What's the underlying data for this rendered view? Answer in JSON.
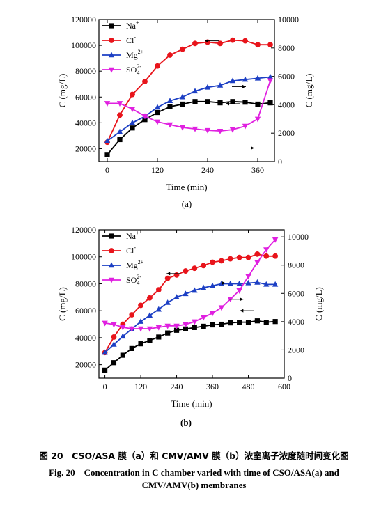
{
  "chart_data": [
    {
      "type": "line",
      "panel_label": "(a)",
      "xlabel": "Time (min)",
      "ylabel_left": "C (mg/L)",
      "ylabel_right": "C (mg/L)",
      "xlim": [
        -20,
        400
      ],
      "xticks": [
        0,
        120,
        240,
        360
      ],
      "ylim_left": [
        10000,
        120000
      ],
      "yticks_left": [
        20000,
        40000,
        60000,
        80000,
        100000,
        120000
      ],
      "ylim_right": [
        0,
        10000
      ],
      "yticks_right": [
        0,
        2000,
        4000,
        6000,
        8000,
        10000
      ],
      "legend_position": "top-left",
      "series": [
        {
          "name": "Na",
          "sup": "+",
          "sub": "",
          "axis": "left",
          "color": "#000000",
          "marker": "square",
          "x": [
            0,
            30,
            60,
            90,
            120,
            150,
            180,
            210,
            240,
            270,
            300,
            330,
            360,
            390
          ],
          "y": [
            15500,
            27000,
            36000,
            42500,
            48000,
            52500,
            54500,
            56500,
            56500,
            55500,
            56500,
            56000,
            54500,
            55500
          ]
        },
        {
          "name": "Cl",
          "sup": "-",
          "sub": "",
          "axis": "left",
          "color": "#e8141b",
          "marker": "circle",
          "x": [
            0,
            30,
            60,
            90,
            120,
            150,
            180,
            210,
            240,
            270,
            300,
            330,
            360,
            390
          ],
          "y": [
            25000,
            46000,
            62000,
            72000,
            84000,
            92500,
            97000,
            101500,
            102500,
            101500,
            104000,
            103500,
            100500,
            100500
          ]
        },
        {
          "name": "Mg",
          "sup": "2+",
          "sub": "",
          "axis": "left",
          "color": "#1c3fc4",
          "marker": "triangle",
          "x": [
            0,
            30,
            60,
            90,
            120,
            150,
            180,
            210,
            240,
            270,
            300,
            330,
            360,
            390
          ],
          "y": [
            26000,
            33000,
            40000,
            45000,
            52000,
            57000,
            60000,
            64500,
            67500,
            69000,
            72500,
            73500,
            74500,
            75500
          ]
        },
        {
          "name": "SO",
          "sup": "2-",
          "sub": "4",
          "axis": "right",
          "color": "#e020e0",
          "marker": "triangle-down",
          "x": [
            0,
            30,
            60,
            90,
            120,
            150,
            180,
            210,
            240,
            270,
            300,
            330,
            360,
            390
          ],
          "y": [
            4100,
            4100,
            3700,
            3200,
            2800,
            2600,
            2400,
            2300,
            2200,
            2150,
            2250,
            2500,
            3000,
            5700
          ]
        }
      ],
      "direction_arrows": [
        {
          "x": 250,
          "y": 103500,
          "dir": "left"
        },
        {
          "x": 315,
          "y": 68000,
          "dir": "right"
        },
        {
          "x": 300,
          "y": 54800,
          "dir": "left"
        },
        {
          "x": 335,
          "y": 20500,
          "dir": "right"
        }
      ]
    },
    {
      "type": "line",
      "panel_label": "(b)",
      "xlabel": "Time (min)",
      "ylabel_left": "C (mg/L)",
      "ylabel_right": "C (mg/L)",
      "xlim": [
        -20,
        600
      ],
      "xticks": [
        0,
        120,
        240,
        360,
        480,
        600
      ],
      "ylim_left": [
        10000,
        120000
      ],
      "yticks_left": [
        20000,
        40000,
        60000,
        80000,
        100000,
        120000
      ],
      "ylim_right": [
        0,
        10500
      ],
      "yticks_right": [
        0,
        2000,
        4000,
        6000,
        8000,
        10000
      ],
      "legend_position": "top-left",
      "series": [
        {
          "name": "Na",
          "sup": "+",
          "sub": "",
          "axis": "left",
          "color": "#000000",
          "marker": "square",
          "x": [
            0,
            30,
            60,
            90,
            120,
            150,
            180,
            210,
            240,
            270,
            300,
            330,
            360,
            390,
            420,
            450,
            480,
            510,
            540,
            570
          ],
          "y": [
            16000,
            21500,
            27000,
            32000,
            35500,
            38000,
            40500,
            43500,
            45500,
            46500,
            47500,
            48500,
            49500,
            50000,
            51000,
            51500,
            51500,
            52500,
            51500,
            52000
          ]
        },
        {
          "name": "Cl",
          "sup": "-",
          "sub": "",
          "axis": "left",
          "color": "#e8141b",
          "marker": "circle",
          "x": [
            0,
            30,
            60,
            90,
            120,
            150,
            180,
            210,
            240,
            270,
            300,
            330,
            360,
            390,
            420,
            450,
            480,
            510,
            540,
            570
          ],
          "y": [
            29000,
            40500,
            50000,
            57000,
            64000,
            69500,
            75500,
            84000,
            86500,
            89500,
            91500,
            93500,
            96000,
            97000,
            98500,
            99500,
            99500,
            102000,
            100500,
            100500
          ]
        },
        {
          "name": "Mg",
          "sup": "2+",
          "sub": "",
          "axis": "left",
          "color": "#1c3fc4",
          "marker": "triangle",
          "x": [
            0,
            30,
            60,
            90,
            120,
            150,
            180,
            210,
            240,
            270,
            300,
            330,
            360,
            390,
            420,
            450,
            480,
            510,
            540,
            570
          ],
          "y": [
            29000,
            35000,
            41000,
            46500,
            52000,
            56500,
            61000,
            66000,
            70000,
            72500,
            75000,
            77000,
            78500,
            80000,
            80000,
            80000,
            80500,
            81000,
            79500,
            79500
          ]
        },
        {
          "name": "SO",
          "sup": "2-",
          "sub": "4",
          "axis": "right",
          "color": "#e020e0",
          "marker": "triangle-down",
          "x": [
            0,
            30,
            60,
            90,
            120,
            150,
            180,
            210,
            240,
            270,
            300,
            330,
            360,
            390,
            420,
            450,
            480,
            510,
            540,
            570
          ],
          "y": [
            3900,
            3800,
            3600,
            3500,
            3500,
            3500,
            3600,
            3700,
            3700,
            3800,
            4000,
            4300,
            4600,
            5000,
            5600,
            6200,
            7200,
            8200,
            9100,
            9800
          ]
        }
      ],
      "direction_arrows": [
        {
          "x": 230,
          "y": 87500,
          "dir": "left"
        },
        {
          "x": 380,
          "y": 80500,
          "dir": "right"
        },
        {
          "x": 440,
          "y": 68500,
          "dir": "right"
        },
        {
          "x": 475,
          "y": 60000,
          "dir": "left"
        }
      ]
    }
  ],
  "caption": {
    "cn": "图 20　CSO/ASA 膜（a）和 CMV/AMV 膜（b）浓室离子浓度随时间变化图",
    "en_line1": "Fig. 20　Concentration in C chamber varied with time of CSO/ASA(a) and",
    "en_line2": "CMV/AMV(b) membranes"
  }
}
